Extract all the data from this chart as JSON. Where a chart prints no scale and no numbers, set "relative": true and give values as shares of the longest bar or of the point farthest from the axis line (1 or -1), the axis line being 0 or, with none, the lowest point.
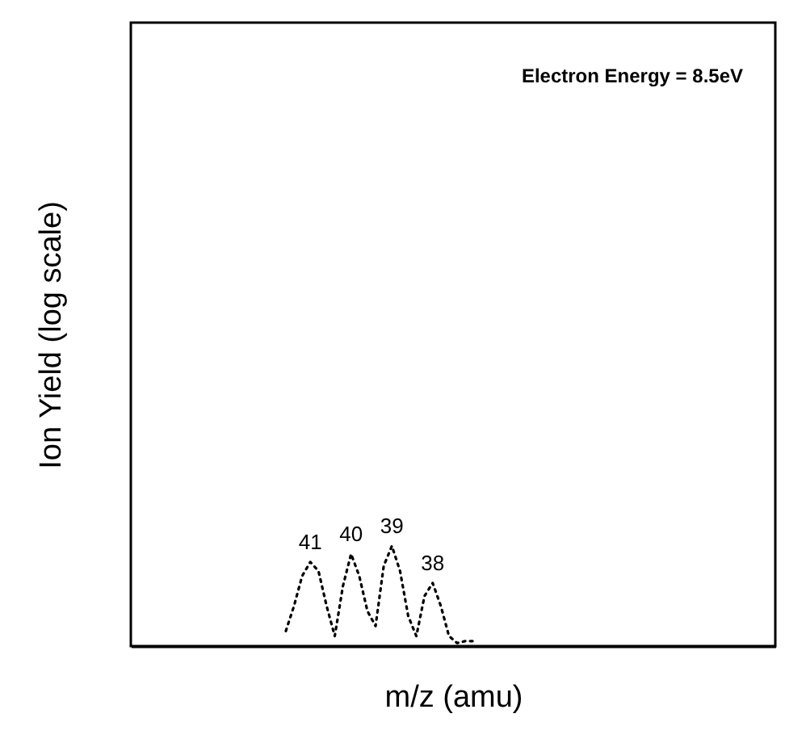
{
  "chart_data": {
    "type": "line",
    "relative": true,
    "xlabel": "m/z (amu)",
    "ylabel": "Ion Yield (log scale)",
    "line_style": "dotted",
    "marker": "none",
    "annotations": [
      "Electron Energy = 8.5eV",
      {
        "text": "41",
        "y": 0.84
      },
      {
        "text": "40",
        "y": 0.92
      },
      {
        "text": "39",
        "y": 1
      },
      {
        "text": "38",
        "y": 0.63
      }
    ],
    "categories": [
      null,
      null,
      null,
      null,
      null,
      null,
      null,
      null,
      null,
      null,
      null,
      null,
      null,
      null,
      null,
      null,
      null,
      null,
      null,
      null,
      null,
      null,
      null,
      null,
      null,
      null,
      null,
      null,
      null,
      null,
      null,
      null,
      null,
      null,
      null,
      null,
      null,
      null,
      null,
      null,
      null,
      null,
      null,
      null,
      null,
      null,
      null,
      null,
      null,
      null,
      null,
      null,
      null,
      null,
      null,
      null,
      null,
      null,
      null,
      null,
      null,
      null,
      null,
      null,
      null,
      null,
      null,
      null,
      null,
      null,
      null,
      null,
      null,
      null,
      null,
      null,
      null,
      null,
      null,
      null
    ],
    "series": [
      {
        "color": "#000000",
        "values": [
          null,
          null,
          null,
          null,
          null,
          null,
          null,
          null,
          null,
          null,
          null,
          null,
          null,
          null,
          null,
          null,
          null,
          null,
          null,
          0.15,
          0.4,
          0.7,
          0.84,
          0.75,
          0.4,
          0.1,
          0.6,
          0.92,
          0.7,
          0.35,
          0.2,
          0.8,
          1,
          0.75,
          0.3,
          0.1,
          0.5,
          0.63,
          0.4,
          0.1,
          0.03,
          0.05,
          0.05,
          null,
          null,
          null,
          null,
          null,
          null,
          null,
          null,
          null,
          null,
          null,
          null,
          null,
          null,
          null,
          null,
          null,
          null,
          null,
          null,
          null,
          null,
          null,
          null,
          null,
          null,
          null,
          null,
          null,
          null,
          null,
          null,
          null,
          null,
          null,
          null,
          null
        ]
      }
    ]
  }
}
